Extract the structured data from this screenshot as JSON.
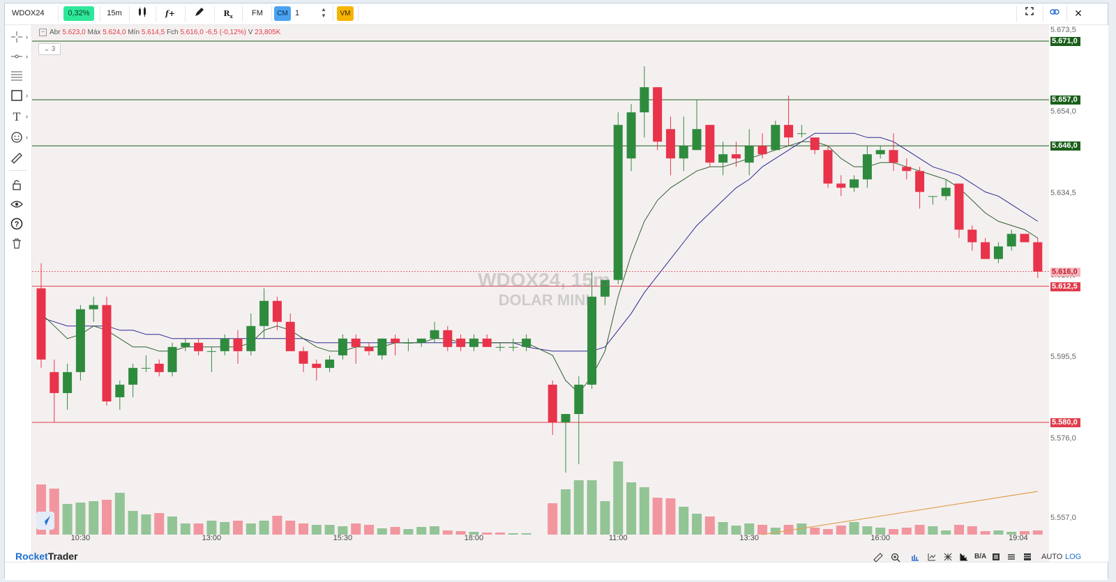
{
  "toolbar": {
    "symbol": "WDOX24",
    "change_badge": "0,32%",
    "timeframe": "15m",
    "chart_type_icon": "candlestick-icon",
    "indicator_label": "f+",
    "draw_icon": "pencil-icon",
    "rx_label": "R",
    "fm_label": "FM",
    "cm_label": "CM",
    "quantity": "1",
    "vm_label": "VM",
    "colors": {
      "change_bg": "#2ee89a",
      "cm_bg": "#4aa3f0",
      "vm_bg": "#f5b400"
    }
  },
  "legend": {
    "open_label": "Abr",
    "open": "5.623,0",
    "high_label": "Máx",
    "high": "5.624,0",
    "low_label": "Mín",
    "low": "5.614,5",
    "close_label": "Fch",
    "close": "5.616,0",
    "change": "-6,5 (-0,12%)",
    "volume_label": "V",
    "volume": "23,805K",
    "collapse_count": "3"
  },
  "watermark": {
    "line1": "WDOX24, 15m",
    "line2": "DOLAR MINI"
  },
  "price_axis": {
    "labels": [
      "5.673,5",
      "5.654,0",
      "5.634,5",
      "5.615,0",
      "5.595,5",
      "5.576,0",
      "5.557,0"
    ],
    "tags": [
      {
        "text": "5.671,0",
        "color": "#1a5e1a",
        "text_color": "#ffffff"
      },
      {
        "text": "5.657,0",
        "color": "#1a5e1a",
        "text_color": "#ffffff"
      },
      {
        "text": "5.646,0",
        "color": "#1a5e1a",
        "text_color": "#ffffff"
      },
      {
        "text": "5.616,0",
        "color": "#f3b6bc",
        "text_color": "#c0202e"
      },
      {
        "text": "5.612,5",
        "color": "#e03c4a",
        "text_color": "#ffffff"
      },
      {
        "text": "5.580,0",
        "color": "#e03c4a",
        "text_color": "#ffffff"
      }
    ]
  },
  "time_axis": {
    "labels": [
      "10:30",
      "13:00",
      "15:30",
      "18:00",
      "11:00",
      "13:30",
      "16:00",
      "19:04"
    ]
  },
  "chart_data": {
    "type": "candlestick",
    "price_range": [
      5553,
      5677
    ],
    "colors": {
      "up": "#2e8b3e",
      "down": "#e8334a",
      "ma_fast": "#2f5f2f",
      "ma_slow": "#2a2a8f",
      "trendline": "#e0a050"
    },
    "horizontal_lines": [
      {
        "price": 5671.0,
        "color": "#1a5e1a"
      },
      {
        "price": 5657.0,
        "color": "#1a5e1a"
      },
      {
        "price": 5646.0,
        "color": "#1a5e1a"
      },
      {
        "price": 5612.5,
        "color": "#e03c4a"
      },
      {
        "price": 5580.0,
        "color": "#e03c4a"
      }
    ],
    "last_price_line": 5616.0,
    "candles": [
      {
        "o": 5612,
        "h": 5618,
        "l": 5593,
        "c": 5595
      },
      {
        "o": 5592,
        "h": 5595,
        "l": 5580,
        "c": 5587
      },
      {
        "o": 5587,
        "h": 5594,
        "l": 5583,
        "c": 5592
      },
      {
        "o": 5592,
        "h": 5608,
        "l": 5590,
        "c": 5607
      },
      {
        "o": 5607,
        "h": 5610,
        "l": 5604,
        "c": 5608
      },
      {
        "o": 5608,
        "h": 5610,
        "l": 5584,
        "c": 5585
      },
      {
        "o": 5586,
        "h": 5590,
        "l": 5583,
        "c": 5589
      },
      {
        "o": 5589,
        "h": 5594,
        "l": 5586,
        "c": 5593
      },
      {
        "o": 5593,
        "h": 5596,
        "l": 5592,
        "c": 5593
      },
      {
        "o": 5594,
        "h": 5595,
        "l": 5591,
        "c": 5592
      },
      {
        "o": 5592,
        "h": 5599,
        "l": 5591,
        "c": 5598
      },
      {
        "o": 5598,
        "h": 5600,
        "l": 5597,
        "c": 5599
      },
      {
        "o": 5599,
        "h": 5600,
        "l": 5596,
        "c": 5597
      },
      {
        "o": 5597,
        "h": 5598,
        "l": 5592,
        "c": 5597
      },
      {
        "o": 5597,
        "h": 5601,
        "l": 5596,
        "c": 5600
      },
      {
        "o": 5600,
        "h": 5602,
        "l": 5594,
        "c": 5597
      },
      {
        "o": 5597,
        "h": 5606,
        "l": 5596,
        "c": 5603
      },
      {
        "o": 5603,
        "h": 5612,
        "l": 5600,
        "c": 5609
      },
      {
        "o": 5609,
        "h": 5610,
        "l": 5602,
        "c": 5604
      },
      {
        "o": 5604,
        "h": 5606,
        "l": 5597,
        "c": 5597
      },
      {
        "o": 5597,
        "h": 5598,
        "l": 5592,
        "c": 5594
      },
      {
        "o": 5594,
        "h": 5595,
        "l": 5590,
        "c": 5593
      },
      {
        "o": 5593,
        "h": 5596,
        "l": 5592,
        "c": 5595
      },
      {
        "o": 5596,
        "h": 5601,
        "l": 5595,
        "c": 5600
      },
      {
        "o": 5600,
        "h": 5601,
        "l": 5594,
        "c": 5598
      },
      {
        "o": 5598,
        "h": 5599,
        "l": 5596,
        "c": 5597
      },
      {
        "o": 5596,
        "h": 5600,
        "l": 5595,
        "c": 5600
      },
      {
        "o": 5600,
        "h": 5601,
        "l": 5596,
        "c": 5599
      },
      {
        "o": 5599,
        "h": 5600,
        "l": 5597,
        "c": 5599
      },
      {
        "o": 5599,
        "h": 5600,
        "l": 5598,
        "c": 5600
      },
      {
        "o": 5600,
        "h": 5604,
        "l": 5599,
        "c": 5602
      },
      {
        "o": 5602,
        "h": 5603,
        "l": 5597,
        "c": 5598
      },
      {
        "o": 5600,
        "h": 5601,
        "l": 5597,
        "c": 5598
      },
      {
        "o": 5598,
        "h": 5601,
        "l": 5597,
        "c": 5600
      },
      {
        "o": 5600,
        "h": 5601,
        "l": 5598,
        "c": 5598
      },
      {
        "o": 5598,
        "h": 5599,
        "l": 5597,
        "c": 5598
      },
      {
        "o": 5598,
        "h": 5600,
        "l": 5597,
        "c": 5598
      },
      {
        "o": 5598,
        "h": 5601,
        "l": 5597,
        "c": 5600
      },
      {
        "o": 5589,
        "h": 5590,
        "l": 5577,
        "c": 5580
      },
      {
        "o": 5580,
        "h": 5582,
        "l": 5568,
        "c": 5582
      },
      {
        "o": 5582,
        "h": 5591,
        "l": 5570,
        "c": 5589
      },
      {
        "o": 5589,
        "h": 5616,
        "l": 5588,
        "c": 5610
      },
      {
        "o": 5610,
        "h": 5614,
        "l": 5608,
        "c": 5614
      },
      {
        "o": 5614,
        "h": 5654,
        "l": 5613,
        "c": 5651
      },
      {
        "o": 5643,
        "h": 5656,
        "l": 5640,
        "c": 5654
      },
      {
        "o": 5654,
        "h": 5665,
        "l": 5648,
        "c": 5660
      },
      {
        "o": 5660,
        "h": 5660,
        "l": 5645,
        "c": 5647
      },
      {
        "o": 5650,
        "h": 5653,
        "l": 5639,
        "c": 5643
      },
      {
        "o": 5643,
        "h": 5653,
        "l": 5640,
        "c": 5646
      },
      {
        "o": 5645,
        "h": 5657,
        "l": 5645,
        "c": 5650
      },
      {
        "o": 5651,
        "h": 5651,
        "l": 5641,
        "c": 5642
      },
      {
        "o": 5642,
        "h": 5647,
        "l": 5639,
        "c": 5644
      },
      {
        "o": 5644,
        "h": 5647,
        "l": 5641,
        "c": 5643
      },
      {
        "o": 5642,
        "h": 5650,
        "l": 5639,
        "c": 5646
      },
      {
        "o": 5646,
        "h": 5649,
        "l": 5643,
        "c": 5644
      },
      {
        "o": 5645,
        "h": 5652,
        "l": 5645,
        "c": 5651
      },
      {
        "o": 5651,
        "h": 5658,
        "l": 5646,
        "c": 5648
      },
      {
        "o": 5649,
        "h": 5651,
        "l": 5648,
        "c": 5649
      },
      {
        "o": 5648,
        "h": 5648,
        "l": 5644,
        "c": 5645
      },
      {
        "o": 5645,
        "h": 5646,
        "l": 5636,
        "c": 5637
      },
      {
        "o": 5637,
        "h": 5639,
        "l": 5634,
        "c": 5636
      },
      {
        "o": 5636,
        "h": 5639,
        "l": 5635,
        "c": 5638
      },
      {
        "o": 5638,
        "h": 5646,
        "l": 5636,
        "c": 5644
      },
      {
        "o": 5644,
        "h": 5646,
        "l": 5643,
        "c": 5645
      },
      {
        "o": 5645,
        "h": 5649,
        "l": 5640,
        "c": 5642
      },
      {
        "o": 5641,
        "h": 5643,
        "l": 5638,
        "c": 5640
      },
      {
        "o": 5640,
        "h": 5641,
        "l": 5631,
        "c": 5635
      },
      {
        "o": 5634,
        "h": 5634,
        "l": 5632,
        "c": 5634
      },
      {
        "o": 5634,
        "h": 5638,
        "l": 5633,
        "c": 5636
      },
      {
        "o": 5637,
        "h": 5637,
        "l": 5624,
        "c": 5626
      },
      {
        "o": 5626,
        "h": 5627,
        "l": 5621,
        "c": 5623
      },
      {
        "o": 5623,
        "h": 5624,
        "l": 5619,
        "c": 5619
      },
      {
        "o": 5619,
        "h": 5623,
        "l": 5618,
        "c": 5622
      },
      {
        "o": 5622,
        "h": 5626,
        "l": 5621,
        "c": 5625
      },
      {
        "o": 5625,
        "h": 5625,
        "l": 5623,
        "c": 5623
      },
      {
        "o": 5623,
        "h": 5624,
        "l": 5614.5,
        "c": 5616
      }
    ],
    "gaps_after_index": [
      37
    ],
    "volumes": [
      72,
      66,
      44,
      46,
      48,
      50,
      60,
      34,
      29,
      31,
      26,
      16,
      16,
      20,
      18,
      20,
      16,
      20,
      27,
      20,
      16,
      14,
      14,
      12,
      16,
      14,
      9,
      11,
      8,
      11,
      12,
      6,
      5,
      4,
      3,
      3,
      2,
      2,
      45,
      65,
      78,
      78,
      48,
      105,
      75,
      68,
      53,
      52,
      40,
      30,
      26,
      18,
      13,
      16,
      14,
      10,
      14,
      16,
      10,
      8,
      13,
      18,
      12,
      10,
      8,
      10,
      14,
      12,
      6,
      14,
      12,
      5,
      6,
      4,
      5,
      6
    ],
    "volume_up_flags": [
      false,
      false,
      true,
      true,
      true,
      false,
      true,
      true,
      true,
      false,
      true,
      true,
      false,
      true,
      true,
      false,
      true,
      true,
      false,
      false,
      false,
      true,
      true,
      true,
      false,
      false,
      true,
      false,
      true,
      true,
      true,
      false,
      false,
      true,
      false,
      false,
      true,
      true,
      false,
      true,
      true,
      true,
      true,
      true,
      true,
      true,
      false,
      false,
      true,
      true,
      false,
      true,
      true,
      true,
      false,
      true,
      false,
      true,
      false,
      false,
      false,
      true,
      true,
      true,
      false,
      false,
      false,
      true,
      true,
      false,
      false,
      false,
      true,
      true,
      false,
      false
    ],
    "ma_fast": [
      5606,
      5603,
      5600,
      5601,
      5603,
      5602,
      5600,
      5598,
      5598,
      5597,
      5597,
      5598,
      5598,
      5598,
      5598,
      5598,
      5599,
      5602,
      5603,
      5602,
      5600,
      5598,
      5597,
      5597,
      5598,
      5598,
      5598,
      5599,
      5599,
      5599,
      5600,
      5600,
      5599,
      5599,
      5599,
      5599,
      5599,
      5599,
      5596,
      5590,
      5587,
      5591,
      5597,
      5610,
      5620,
      5628,
      5633,
      5636,
      5638,
      5640,
      5641,
      5641,
      5642,
      5643,
      5644,
      5645,
      5646,
      5647,
      5647,
      5646,
      5643,
      5641,
      5641,
      5642,
      5642,
      5641,
      5640,
      5639,
      5638,
      5636,
      5633,
      5630,
      5628,
      5627,
      5626,
      5624
    ],
    "ma_slow": [
      5605,
      5604,
      5603,
      5603,
      5603,
      5603,
      5602,
      5602,
      5601,
      5601,
      5600,
      5600,
      5600,
      5600,
      5600,
      5600,
      5600,
      5600,
      5600,
      5600,
      5600,
      5599,
      5599,
      5599,
      5599,
      5599,
      5599,
      5599,
      5599,
      5599,
      5599,
      5599,
      5599,
      5599,
      5599,
      5599,
      5599,
      5598,
      5597,
      5597,
      5597,
      5597,
      5598,
      5602,
      5606,
      5611,
      5615,
      5619,
      5623,
      5627,
      5630,
      5633,
      5636,
      5638,
      5641,
      5643,
      5645,
      5647,
      5649,
      5649,
      5649,
      5649,
      5648,
      5648,
      5647,
      5645,
      5643,
      5641,
      5640,
      5639,
      5637,
      5635,
      5634,
      5632,
      5630,
      5628
    ],
    "volume_trend": [
      {
        "index": 54,
        "value": 0
      },
      {
        "index": 75,
        "value": 62
      }
    ]
  },
  "bottom": {
    "brand_part1": "Rocket",
    "brand_part2": "Trader",
    "auto_label": "AUTO",
    "log_label": "LOG",
    "ba_label": "B/A",
    "colors": {
      "brand1": "#1d6fd0",
      "brand2": "#222222"
    }
  }
}
